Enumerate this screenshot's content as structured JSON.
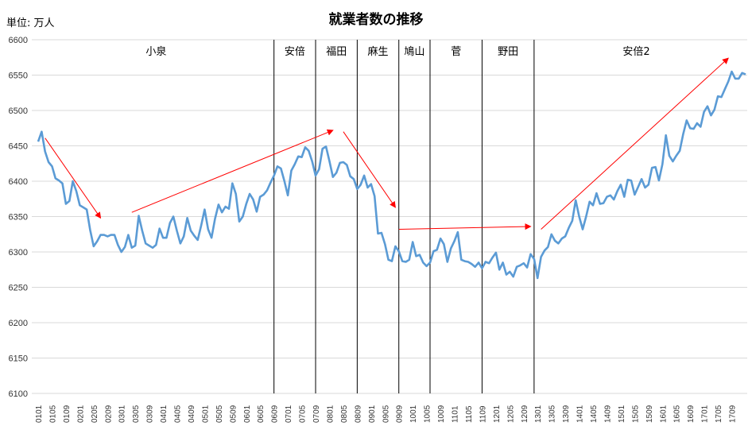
{
  "unit_label": "単位: 万人",
  "chart_data": {
    "type": "line",
    "title": "就業者数の推移",
    "xlabel": "",
    "ylabel": "",
    "ylim": [
      6100,
      6600
    ],
    "yticks": [
      6100,
      6150,
      6200,
      6250,
      6300,
      6350,
      6400,
      6450,
      6500,
      6550,
      6600
    ],
    "grid": true,
    "legend": "none",
    "start_period": "0101",
    "x_tick_labels": [
      "0101",
      "0105",
      "0109",
      "0201",
      "0205",
      "0209",
      "0301",
      "0305",
      "0309",
      "0401",
      "0405",
      "0409",
      "0501",
      "0505",
      "0509",
      "0601",
      "0605",
      "0609",
      "0701",
      "0705",
      "0709",
      "0801",
      "0805",
      "0809",
      "0901",
      "0905",
      "0909",
      "1001",
      "1005",
      "1009",
      "1101",
      "1105",
      "1109",
      "1201",
      "1205",
      "1209",
      "1301",
      "1305",
      "1309",
      "1401",
      "1405",
      "1409",
      "1501",
      "1505",
      "1509",
      "1601",
      "1605",
      "1609",
      "1701",
      "1705",
      "1709"
    ],
    "series": [
      {
        "name": "",
        "color": "#5B9BD5",
        "values": [
          6456,
          6470,
          6442,
          6427,
          6421,
          6404,
          6401,
          6397,
          6368,
          6372,
          6400,
          6386,
          6366,
          6363,
          6360,
          6331,
          6308,
          6315,
          6324,
          6324,
          6322,
          6324,
          6324,
          6310,
          6300,
          6307,
          6324,
          6306,
          6309,
          6351,
          6330,
          6312,
          6309,
          6306,
          6310,
          6333,
          6320,
          6320,
          6341,
          6350,
          6330,
          6312,
          6322,
          6348,
          6330,
          6323,
          6317,
          6337,
          6360,
          6332,
          6320,
          6347,
          6367,
          6356,
          6364,
          6361,
          6397,
          6382,
          6343,
          6350,
          6368,
          6382,
          6374,
          6357,
          6378,
          6381,
          6387,
          6398,
          6408,
          6421,
          6418,
          6400,
          6380,
          6415,
          6424,
          6435,
          6434,
          6448,
          6443,
          6428,
          6408,
          6417,
          6446,
          6449,
          6428,
          6406,
          6412,
          6426,
          6427,
          6423,
          6407,
          6403,
          6389,
          6395,
          6408,
          6391,
          6396,
          6379,
          6326,
          6327,
          6311,
          6289,
          6287,
          6308,
          6301,
          6287,
          6286,
          6289,
          6314,
          6294,
          6296,
          6285,
          6280,
          6285,
          6301,
          6303,
          6319,
          6311,
          6286,
          6305,
          6315,
          6328,
          6289,
          6287,
          6286,
          6283,
          6279,
          6285,
          6277,
          6286,
          6284,
          6292,
          6299,
          6275,
          6285,
          6268,
          6272,
          6265,
          6279,
          6281,
          6284,
          6278,
          6297,
          6290,
          6263,
          6293,
          6302,
          6307,
          6325,
          6316,
          6312,
          6319,
          6322,
          6334,
          6344,
          6373,
          6350,
          6332,
          6350,
          6371,
          6366,
          6383,
          6368,
          6369,
          6378,
          6380,
          6374,
          6386,
          6395,
          6378,
          6402,
          6401,
          6381,
          6392,
          6403,
          6391,
          6395,
          6419,
          6420,
          6401,
          6424,
          6465,
          6436,
          6428,
          6436,
          6443,
          6467,
          6486,
          6475,
          6474,
          6482,
          6477,
          6498,
          6506,
          6493,
          6501,
          6520,
          6519,
          6530,
          6541,
          6555,
          6545,
          6545,
          6553,
          6551
        ]
      }
    ],
    "periods": [
      {
        "label": "小泉",
        "start_index": 0,
        "end_index": 68
      },
      {
        "label": "安倍",
        "start_index": 68,
        "end_index": 80
      },
      {
        "label": "福田",
        "start_index": 80,
        "end_index": 92
      },
      {
        "label": "麻生",
        "start_index": 92,
        "end_index": 104
      },
      {
        "label": "鳩山",
        "start_index": 104,
        "end_index": 113
      },
      {
        "label": "菅",
        "start_index": 113,
        "end_index": 128
      },
      {
        "label": "野田",
        "start_index": 128,
        "end_index": 143
      },
      {
        "label": "安倍2",
        "start_index": 143,
        "end_index": 202
      }
    ],
    "trend_arrows": [
      {
        "from": [
          2,
          6461
        ],
        "to": [
          18,
          6348
        ],
        "color": "#FF0000"
      },
      {
        "from": [
          27,
          6356
        ],
        "to": [
          85,
          6472
        ],
        "color": "#FF0000"
      },
      {
        "from": [
          88,
          6470
        ],
        "to": [
          103,
          6363
        ],
        "color": "#FF0000"
      },
      {
        "from": [
          104,
          6332
        ],
        "to": [
          142,
          6336
        ],
        "color": "#FF0000"
      },
      {
        "from": [
          145,
          6332
        ],
        "to": [
          199,
          6574
        ],
        "color": "#FF0000"
      }
    ]
  }
}
